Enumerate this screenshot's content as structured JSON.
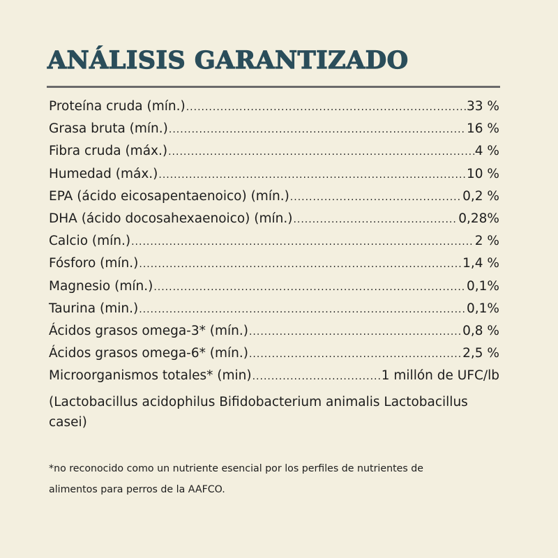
{
  "title": "ANÁLISIS GARANTIZADO",
  "rows": [
    {
      "label": "Proteína cruda (mín.)",
      "value": "33 %"
    },
    {
      "label": "Grasa bruta (mín.)",
      "value": "16 %"
    },
    {
      "label": "Fibra cruda (máx.)",
      "value": "4 %"
    },
    {
      "label": "Humedad (máx.)",
      "value": "10 %"
    },
    {
      "label": "EPA (ácido eicosapentaenoico) (mín.)",
      "value": "0,2 %"
    },
    {
      "label": "DHA (ácido docosahexaenoico) (mín.)",
      "value": "0,28%"
    },
    {
      "label": "Calcio (mín.)",
      "value": "2 %"
    },
    {
      "label": "Fósforo (mín.)",
      "value": "1,4 %"
    },
    {
      "label": "Magnesio (mín.)",
      "value": "0,1%"
    },
    {
      "label": "Taurina (min.)",
      "value": "0,1%"
    },
    {
      "label": "Ácidos grasos omega-3* (mín.)",
      "value": "0,8 %"
    },
    {
      "label": "Ácidos grasos omega-6* (mín.)",
      "value": "2,5 %"
    },
    {
      "label": "Microorganismos totales* (min)",
      "value": "1 millón de UFC/lb"
    }
  ],
  "strains": {
    "line1": "(Lactobacillus acidophilus Bifidobacterium animalis Lactobacillus",
    "line2": "casei)"
  },
  "footnote": {
    "line1": "*no reconocido como un nutriente esencial por los perfiles de nutrientes de",
    "line2": "alimentos para perros de la AAFCO."
  }
}
